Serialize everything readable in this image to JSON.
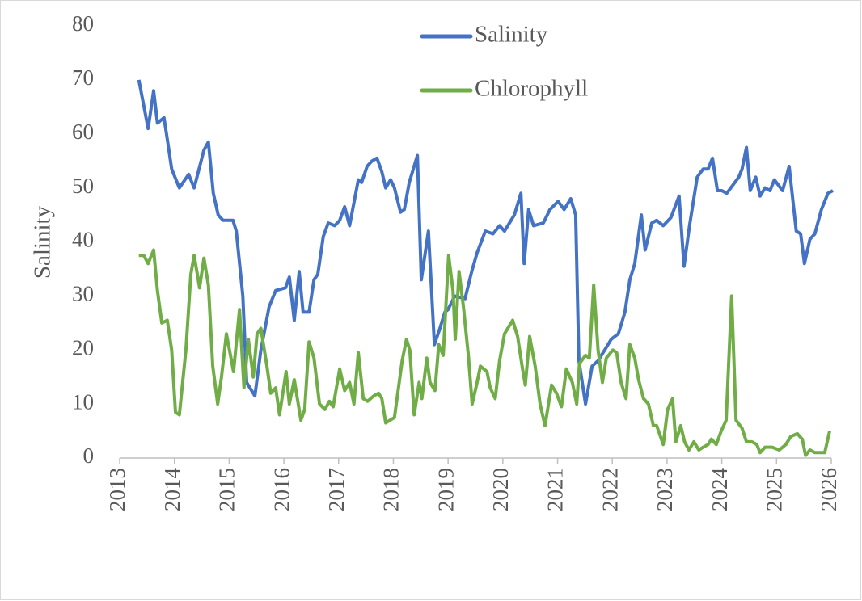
{
  "chart_data": {
    "type": "line",
    "ylabel": "Salinity",
    "xlim": [
      2013,
      2026
    ],
    "xticks": [
      2013,
      2014,
      2015,
      2016,
      2017,
      2018,
      2019,
      2020,
      2021,
      2022,
      2023,
      2024,
      2025,
      2026
    ],
    "ylim": [
      0,
      80
    ],
    "yticks": [
      0,
      10,
      20,
      30,
      40,
      50,
      60,
      70,
      80
    ],
    "grid": false,
    "legend": "top",
    "series": [
      {
        "name": "Salinity",
        "color": "#4472c4",
        "x": [
          2013.35,
          2013.52,
          2013.62,
          2013.69,
          2013.81,
          2013.87,
          2013.95,
          2014.09,
          2014.26,
          2014.36,
          2014.54,
          2014.62,
          2014.71,
          2014.8,
          2014.89,
          2015.07,
          2015.13,
          2015.25,
          2015.32,
          2015.47,
          2015.58,
          2015.73,
          2015.85,
          2016.03,
          2016.1,
          2016.19,
          2016.28,
          2016.35,
          2016.46,
          2016.55,
          2016.62,
          2016.72,
          2016.81,
          2016.93,
          2017.02,
          2017.11,
          2017.2,
          2017.36,
          2017.42,
          2017.52,
          2017.61,
          2017.7,
          2017.79,
          2017.86,
          2017.95,
          2018.02,
          2018.13,
          2018.2,
          2018.29,
          2018.44,
          2018.51,
          2018.64,
          2018.75,
          2018.85,
          2018.94,
          2019.0,
          2019.12,
          2019.31,
          2019.43,
          2019.53,
          2019.68,
          2019.82,
          2019.94,
          2020.03,
          2020.21,
          2020.33,
          2020.39,
          2020.47,
          2020.56,
          2020.74,
          2020.86,
          2021.01,
          2021.12,
          2021.24,
          2021.33,
          2021.39,
          2021.51,
          2021.63,
          2021.74,
          2021.86,
          2021.98,
          2022.11,
          2022.23,
          2022.32,
          2022.41,
          2022.53,
          2022.6,
          2022.72,
          2022.81,
          2022.93,
          2023.07,
          2023.22,
          2023.31,
          2023.41,
          2023.55,
          2023.66,
          2023.75,
          2023.83,
          2023.92,
          2024.0,
          2024.09,
          2024.2,
          2024.31,
          2024.37,
          2024.45,
          2024.52,
          2024.62,
          2024.7,
          2024.79,
          2024.88,
          2024.96,
          2025.11,
          2025.23,
          2025.36,
          2025.44,
          2025.51,
          2025.61,
          2025.7,
          2025.82,
          2025.94,
          2026.03
        ],
        "values": [
          70,
          61,
          68,
          62,
          63,
          59,
          53.5,
          50,
          52.5,
          50,
          57,
          58.5,
          49,
          45,
          44,
          44,
          42,
          30,
          14,
          11.5,
          20,
          28,
          31,
          31.5,
          33.5,
          25.5,
          34.5,
          27,
          27,
          33,
          34,
          41,
          43.5,
          43,
          44,
          46.5,
          43,
          51.5,
          51,
          54,
          55,
          55.5,
          53,
          50,
          51.5,
          50,
          45.5,
          46,
          51,
          56,
          33,
          42,
          21,
          24,
          27,
          27.5,
          30,
          29.5,
          34.5,
          38,
          42,
          41.5,
          43,
          42,
          45,
          49,
          36,
          46,
          43,
          43.5,
          46,
          47.5,
          46,
          48,
          45,
          18,
          10,
          17,
          18,
          20,
          22,
          23,
          27,
          33,
          36,
          45,
          38.5,
          43.5,
          44,
          43,
          44.5,
          48.5,
          35.5,
          43,
          52,
          53.5,
          53.5,
          55.5,
          49.5,
          49.5,
          49,
          50.5,
          52,
          53.5,
          57.5,
          49.5,
          52,
          48.5,
          50,
          49.5,
          51.5,
          49.5,
          54,
          42,
          41.5,
          36,
          40.5,
          41.5,
          46,
          49,
          49.5
        ]
      },
      {
        "name": "Chlorophyll",
        "color": "#70ad47",
        "x": [
          2013.35,
          2013.44,
          2013.52,
          2013.62,
          2013.69,
          2013.77,
          2013.87,
          2013.95,
          2014.02,
          2014.09,
          2014.21,
          2014.3,
          2014.36,
          2014.46,
          2014.54,
          2014.62,
          2014.7,
          2014.79,
          2014.86,
          2014.95,
          2015.08,
          2015.19,
          2015.27,
          2015.35,
          2015.44,
          2015.51,
          2015.58,
          2015.69,
          2015.76,
          2015.85,
          2015.92,
          2016.04,
          2016.1,
          2016.19,
          2016.31,
          2016.38,
          2016.46,
          2016.55,
          2016.65,
          2016.75,
          2016.83,
          2016.9,
          2017.02,
          2017.11,
          2017.2,
          2017.28,
          2017.36,
          2017.45,
          2017.53,
          2017.64,
          2017.73,
          2017.79,
          2017.86,
          2018.02,
          2018.16,
          2018.24,
          2018.3,
          2018.38,
          2018.47,
          2018.52,
          2018.61,
          2018.67,
          2018.76,
          2018.83,
          2018.91,
          2019.01,
          2019.09,
          2019.13,
          2019.2,
          2019.28,
          2019.37,
          2019.44,
          2019.53,
          2019.59,
          2019.71,
          2019.77,
          2019.86,
          2019.94,
          2020.03,
          2020.18,
          2020.27,
          2020.36,
          2020.41,
          2020.49,
          2020.59,
          2020.68,
          2020.77,
          2020.89,
          2020.98,
          2021.07,
          2021.16,
          2021.27,
          2021.35,
          2021.4,
          2021.51,
          2021.58,
          2021.66,
          2021.74,
          2021.82,
          2021.89,
          2022.01,
          2022.08,
          2022.16,
          2022.25,
          2022.32,
          2022.41,
          2022.48,
          2022.57,
          2022.66,
          2022.75,
          2022.81,
          2022.93,
          2023.01,
          2023.1,
          2023.16,
          2023.25,
          2023.32,
          2023.4,
          2023.49,
          2023.58,
          2023.66,
          2023.75,
          2023.81,
          2023.9,
          2023.99,
          2024.08,
          2024.18,
          2024.26,
          2024.37,
          2024.45,
          2024.55,
          2024.64,
          2024.7,
          2024.79,
          2024.92,
          2025.05,
          2025.17,
          2025.26,
          2025.38,
          2025.47,
          2025.53,
          2025.61,
          2025.7,
          2025.82,
          2025.88,
          2025.97
        ],
        "values": [
          37.5,
          37.5,
          36,
          38.5,
          31,
          25,
          25.5,
          20,
          8.5,
          8,
          20,
          34,
          37.5,
          31.5,
          37,
          32,
          17,
          10,
          15,
          23,
          16,
          27.5,
          13,
          22,
          15,
          23,
          24,
          17,
          12,
          13,
          8,
          16,
          10,
          14.5,
          7,
          9,
          21.5,
          18.5,
          10,
          9,
          10.5,
          9.5,
          16.5,
          12.5,
          14,
          10,
          19.5,
          11,
          10.5,
          11.5,
          12,
          11,
          6.5,
          7.5,
          18,
          22,
          20,
          8,
          14,
          11,
          18.5,
          14,
          12.5,
          21,
          19,
          37.5,
          31,
          22,
          34.5,
          28,
          19,
          10,
          14,
          17,
          16,
          13,
          11,
          18,
          23,
          25.5,
          22.5,
          16.5,
          13.5,
          22.5,
          17,
          10,
          6,
          13.5,
          12,
          9.5,
          16.5,
          14,
          10,
          17.5,
          19,
          18.5,
          32,
          20,
          14,
          18.5,
          20,
          19.5,
          14,
          11,
          21,
          18.5,
          14.5,
          11,
          10,
          6,
          6,
          2.5,
          9,
          11,
          3,
          6,
          3,
          1.5,
          3,
          1.5,
          2,
          2.5,
          3.5,
          2.5,
          5,
          7,
          30,
          7,
          5.5,
          3,
          3,
          2.5,
          1,
          2,
          2,
          1.5,
          2.5,
          4,
          4.5,
          3.5,
          0.5,
          1.5,
          1,
          1,
          1,
          5
        ]
      }
    ]
  }
}
